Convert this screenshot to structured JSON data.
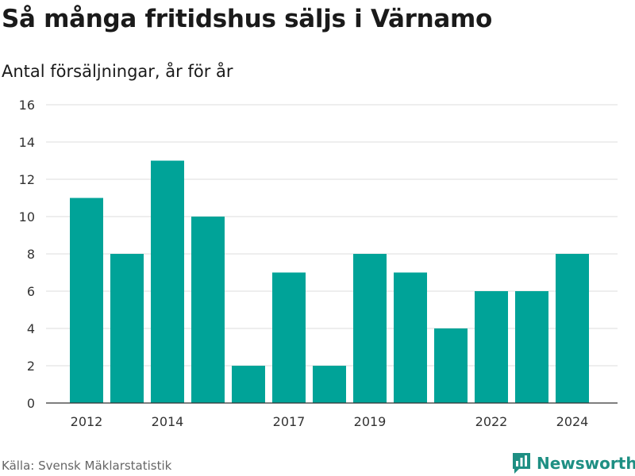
{
  "title": "Så många fritidshus säljs i Värnamo",
  "subtitle": "Antal försäljningar, år för år",
  "source": "Källa: Svensk Mäklarstatistik",
  "logo": {
    "text": "Newsworthy",
    "icon": "bar-chart-speech-bubble-icon"
  },
  "colors": {
    "bar": "#00a398",
    "brand": "#1e8f83",
    "grid": "#dddddd",
    "axis": "#333333"
  },
  "chart_data": {
    "type": "bar",
    "title": "Så många fritidshus säljs i Värnamo",
    "subtitle": "Antal försäljningar, år för år",
    "categories": [
      "2012",
      "2013",
      "2014",
      "2015",
      "2016",
      "2017",
      "2018",
      "2019",
      "2020",
      "2021",
      "2022",
      "2023",
      "2024"
    ],
    "values": [
      11,
      8,
      13,
      10,
      2,
      7,
      2,
      8,
      7,
      4,
      6,
      6,
      8
    ],
    "x_tick_labels": [
      "2012",
      "2014",
      "2017",
      "2019",
      "2022",
      "2024"
    ],
    "y_ticks": [
      0,
      2,
      4,
      6,
      8,
      10,
      12,
      14,
      16
    ],
    "ylim": [
      0,
      16
    ],
    "xlabel": "",
    "ylabel": "",
    "grid": true
  }
}
